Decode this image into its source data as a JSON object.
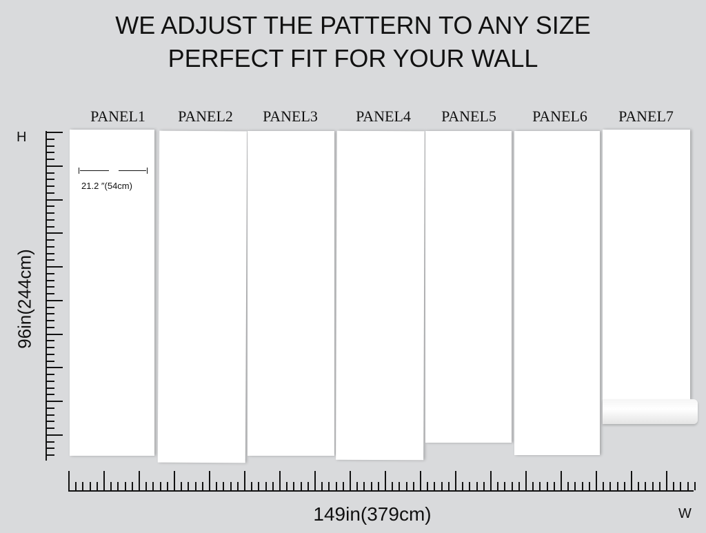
{
  "header": {
    "line1": "WE ADJUST THE PATTERN TO ANY SIZE",
    "line2": "PERFECT FIT FOR YOUR WALL"
  },
  "panels": [
    {
      "label": "PANEL1"
    },
    {
      "label": "PANEL2"
    },
    {
      "label": "PANEL3"
    },
    {
      "label": "PANEL4"
    },
    {
      "label": "PANEL5"
    },
    {
      "label": "PANEL6"
    },
    {
      "label": "PANEL7"
    }
  ],
  "panel_width": "21.2  ″(54cm)",
  "height_label": "96in(244cm)",
  "width_label": "149in(379cm)",
  "h_marker": "H",
  "w_marker": "W"
}
